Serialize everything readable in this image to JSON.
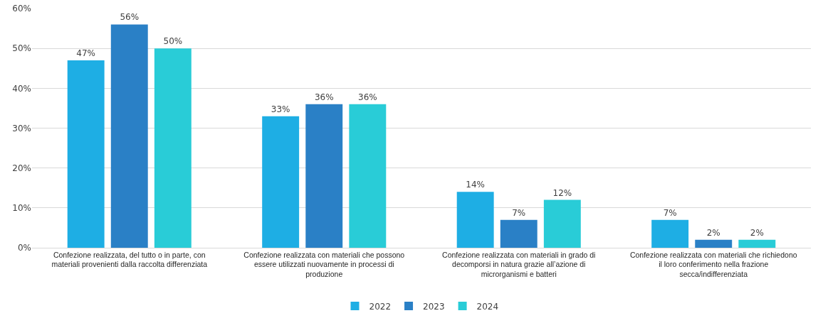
{
  "chart_data": {
    "type": "bar",
    "categories": [
      "Confezione realizzata, del tutto o in parte, con materiali provenienti dalla raccolta differenziata",
      "Confezione realizzata con materiali che possono essere utilizzati nuovamente in processi di produzione",
      "Confezione realizzata con materiali in grado di decomporsi in natura grazie all’azione di microrganismi e batteri",
      "Confezione realizzata con materiali che richiedono il loro conferimento nella frazione secca/indifferenziata"
    ],
    "series": [
      {
        "name": "2022",
        "color": "#1eaee4",
        "values": [
          47,
          33,
          14,
          7
        ],
        "value_labels": [
          "47%",
          "33%",
          "14%",
          "7%"
        ]
      },
      {
        "name": "2023",
        "color": "#2a80c6",
        "values": [
          56,
          36,
          7,
          2
        ],
        "value_labels": [
          "56%",
          "36%",
          "7%",
          "2%"
        ]
      },
      {
        "name": "2024",
        "color": "#29ccd7",
        "values": [
          50,
          36,
          12,
          2
        ],
        "value_labels": [
          "50%",
          "36%",
          "12%",
          "2%"
        ]
      }
    ],
    "ylim": [
      0,
      60
    ],
    "yticks": [
      {
        "value": 0,
        "label": "0%"
      },
      {
        "value": 10,
        "label": "10%"
      },
      {
        "value": 20,
        "label": "20%"
      },
      {
        "value": 30,
        "label": "30%"
      },
      {
        "value": 40,
        "label": "40%"
      },
      {
        "value": 50,
        "label": "50%"
      },
      {
        "value": 60,
        "label": "60%"
      }
    ],
    "grid": "y",
    "legend": "bottom"
  }
}
